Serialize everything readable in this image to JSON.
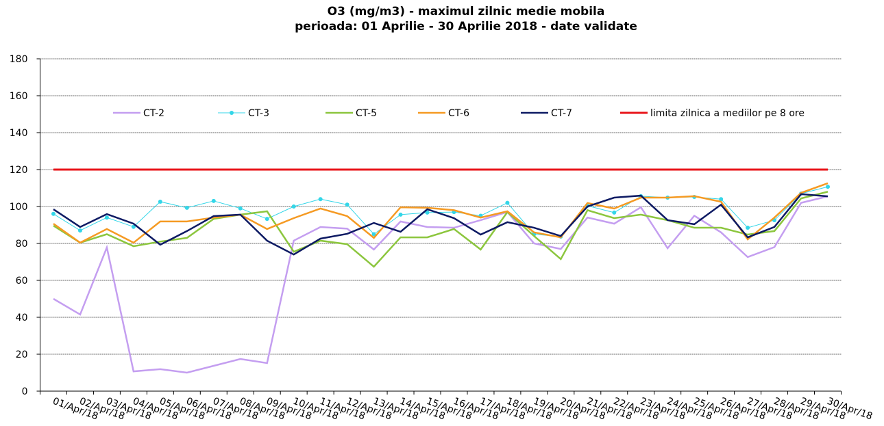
{
  "chart_data": {
    "type": "line",
    "title": "O3 (mg/m3) - maximul zilnic medie mobila",
    "subtitle": "perioada: 01 Aprilie - 30 Aprilie 2018 - date validate",
    "categories": [
      "01/Apr/18",
      "02/Apr/18",
      "03/Apr/18",
      "04/Apr/18",
      "05/Apr/18",
      "06/Apr/18",
      "07/Apr/18",
      "08/Apr/18",
      "09/Apr/18",
      "10/Apr/18",
      "11/Apr/18",
      "12/Apr/18",
      "13/Apr/18",
      "14/Apr/18",
      "15/Apr/18",
      "16/Apr/18",
      "17/Apr/18",
      "18/Apr/18",
      "19/Apr/18",
      "20/Apr/18",
      "21/Apr/18",
      "22/Apr/18",
      "23/Apr/18",
      "24/Apr/18",
      "25/Apr/18",
      "26/Apr/18",
      "27/Apr/18",
      "28/Apr/18",
      "29/Apr/18",
      "30/Apr/18"
    ],
    "series": [
      {
        "name": "CT-2",
        "color": "#c49ef0",
        "values": [
          50,
          41.5,
          77.8,
          10.7,
          11.9,
          10,
          13.7,
          17.4,
          15.2,
          81.5,
          88.9,
          88,
          76.7,
          91.9,
          88.9,
          88.5,
          92.6,
          97,
          80,
          77,
          94,
          90.7,
          99.6,
          77.4,
          95,
          86,
          72.6,
          78,
          102,
          105.5
        ]
      },
      {
        "name": "CT-3",
        "color": "#33d6e8",
        "markers": true,
        "values": [
          96,
          87,
          94,
          89,
          102.6,
          99.3,
          103,
          99,
          93.3,
          100,
          104,
          101,
          85,
          95.6,
          96.7,
          97,
          95,
          102,
          85,
          83.7,
          100.4,
          96.7,
          105.6,
          104.8,
          105.2,
          104,
          88.5,
          92.6,
          107,
          110.7
        ]
      },
      {
        "name": "CT-5",
        "color": "#8cc63e",
        "values": [
          89.6,
          80.4,
          85,
          78.5,
          81,
          83,
          93.3,
          95.6,
          97.4,
          75.5,
          81.5,
          79.6,
          67.4,
          83.3,
          83.3,
          87.8,
          76.7,
          97,
          84,
          71.5,
          98,
          93.7,
          95.6,
          92.6,
          88.5,
          88.5,
          84.8,
          86.7,
          104.4,
          108
        ]
      },
      {
        "name": "CT-6",
        "color": "#f59a23",
        "values": [
          90.7,
          80.4,
          87.8,
          80.4,
          91.9,
          91.9,
          94,
          95.6,
          87.8,
          93.7,
          98.9,
          94.8,
          83,
          99.6,
          99.3,
          98,
          94,
          97.4,
          86,
          83.3,
          101.9,
          98.9,
          104.8,
          104.8,
          105.6,
          102.6,
          82.2,
          94,
          107.4,
          112.6
        ]
      },
      {
        "name": "CT-7",
        "color": "#0d1a63",
        "values": [
          98.5,
          88.9,
          95.9,
          90.7,
          79.3,
          86.7,
          94.8,
          95.6,
          81.5,
          74,
          82.6,
          85.2,
          91.1,
          86.3,
          98.5,
          93.7,
          84.8,
          91.5,
          88.5,
          84,
          100,
          104.8,
          105.9,
          92.6,
          90.4,
          101,
          83.3,
          88.9,
          106.7,
          105.5
        ]
      },
      {
        "name": "limita zilnica a mediilor pe 8 ore",
        "color": "#e8141a",
        "values": [
          120,
          120,
          120,
          120,
          120,
          120,
          120,
          120,
          120,
          120,
          120,
          120,
          120,
          120,
          120,
          120,
          120,
          120,
          120,
          120,
          120,
          120,
          120,
          120,
          120,
          120,
          120,
          120,
          120,
          120
        ]
      }
    ],
    "ylim": [
      0,
      180
    ],
    "yticks": [
      0,
      20,
      40,
      60,
      80,
      100,
      120,
      140,
      160,
      180
    ],
    "grid": true
  }
}
